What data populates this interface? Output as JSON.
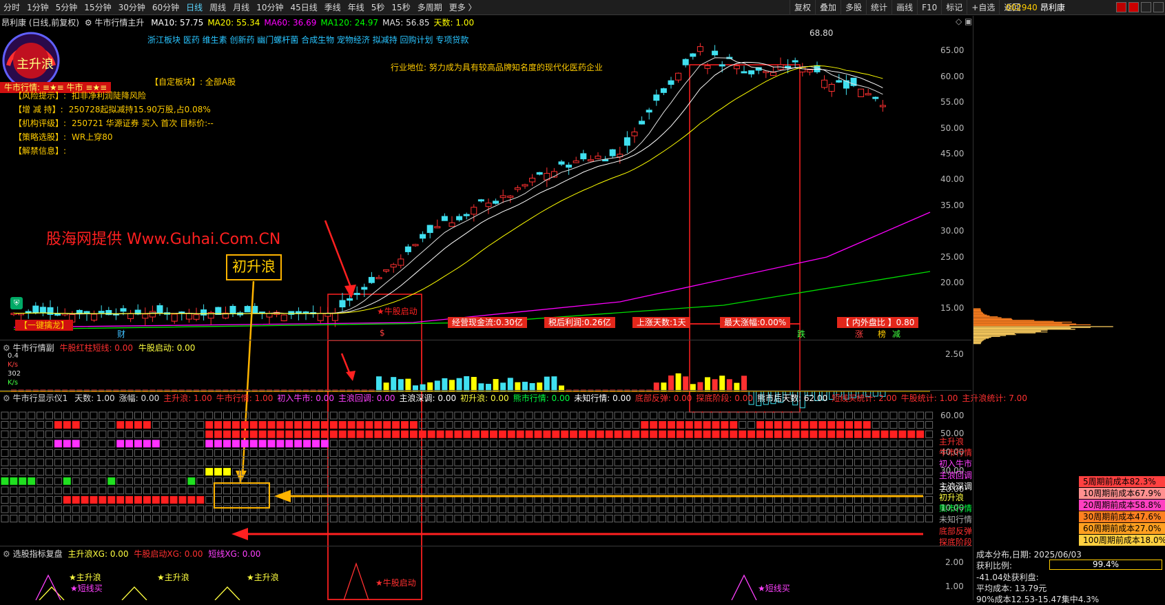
{
  "toolbar": {
    "periods": [
      "分时",
      "1分钟",
      "5分钟",
      "15分钟",
      "30分钟",
      "60分钟",
      "日线",
      "周线",
      "月线",
      "10分钟",
      "45日线",
      "季线",
      "年线",
      "5秒",
      "15秒",
      "多周期",
      "更多 〉"
    ],
    "active_period": "日线",
    "buttons": [
      "复权",
      "叠加",
      "多股",
      "统计",
      "画线",
      "F10",
      "标记",
      "+自选",
      "返回"
    ],
    "stock_code": "002940",
    "stock_name": "昂利康"
  },
  "kline": {
    "title": "昂利康 (日线,前复权)",
    "indicator_name": "牛市行情主升",
    "ma": [
      {
        "label": "MA10: 57.75",
        "color": "#ffffff"
      },
      {
        "label": "MA20: 55.34",
        "color": "#ffff00"
      },
      {
        "label": "MA60: 36.69",
        "color": "#ff00ff"
      },
      {
        "label": "MA120: 24.97",
        "color": "#00ff00"
      },
      {
        "label": "MA5: 56.85",
        "color": "#e0e0e0"
      },
      {
        "label": "天数: 1.00",
        "color": "#ffff00"
      }
    ],
    "concepts": "浙江板块  医药  维生素  创新药  幽门螺杆菌  合成生物  宠物经济   拟减持  回购计划  专项贷款",
    "industry": "行业地位: 努力成为具有较高品牌知名度的现代化医药企业",
    "custom_block": "【自定板块】: 全部A股",
    "bull_market": "牛市行情:  ≡★≡ 牛市 ≡★≡",
    "dial_text": "主升浪",
    "info": [
      {
        "key": "【风险提示】:",
        "val": "扣非净利润陡降风险"
      },
      {
        "key": "【增  减  持】:",
        "val": "250728起拟减持15.90万股,占0.08%"
      },
      {
        "key": "【机构评级】:",
        "val": "250721 华源证券 买入 首次 目标价:--"
      },
      {
        "key": "【策略选股】:",
        "val": "WR上穿80"
      },
      {
        "key": "【解禁信息】:",
        "val": ""
      }
    ],
    "watermark": "股海网提供 Www.Guhai.Com.CN",
    "callout": "初升浪",
    "max_price": "68.80",
    "price_axis": [
      "65.00",
      "60.00",
      "55.00",
      "50.00",
      "45.00",
      "40.00",
      "35.00",
      "30.00",
      "25.00",
      "20.00",
      "15.00"
    ],
    "bottom_tags": [
      "经营现金流:0.30亿",
      "税后利润:0.26亿",
      "上涨天数:1天",
      "最大涨幅:0.00%",
      "【 内外盘比 】0.80"
    ],
    "left_tag": "【一键擒龙】",
    "start_label": "★牛股启动",
    "event_marks": [
      "财",
      "$",
      "跌",
      "涨",
      "榜",
      "减"
    ]
  },
  "sub1": {
    "title": "牛市行情副",
    "f1": "牛股红柱短线: 0.00",
    "f2": "牛股启动: 0.00",
    "axis": [
      "2.50"
    ],
    "ks1": "0.4",
    "ks2": "302",
    "ks_unit": "K/s"
  },
  "sub2": {
    "title": "牛市行显示仪1",
    "fields": [
      {
        "t": "天数: 1.00",
        "c": "#e0e0e0"
      },
      {
        "t": "涨幅: 0.00",
        "c": "#e0e0e0"
      },
      {
        "t": "主升浪: 1.00",
        "c": "#ff3030"
      },
      {
        "t": "牛市行情: 1.00",
        "c": "#ff3030"
      },
      {
        "t": "初入牛市: 0.00",
        "c": "#ff40ff"
      },
      {
        "t": "主浪回调: 0.00",
        "c": "#ff40ff"
      },
      {
        "t": "主浪深调: 0.00",
        "c": "#ffffff"
      },
      {
        "t": "初升浪: 0.00",
        "c": "#ffff40"
      },
      {
        "t": "熊市行情: 0.00",
        "c": "#00ff40"
      },
      {
        "t": "未知行情: 0.00",
        "c": "#ffffff"
      },
      {
        "t": "底部反弹: 0.00",
        "c": "#ff3030"
      },
      {
        "t": "探底阶段: 0.00",
        "c": "#ff3030"
      },
      {
        "t": "熊市后天数: 62.00",
        "c": "#ffffff"
      },
      {
        "t": "短线买统计: 2.00",
        "c": "#ff3030"
      },
      {
        "t": "牛股统计: 1.00",
        "c": "#ff3030"
      },
      {
        "t": "主升浪统计: 7.00",
        "c": "#ff3030"
      }
    ],
    "axis": [
      "60.00",
      "50.00",
      "40.00",
      "30.00",
      "20.00",
      "10.00"
    ],
    "legend": [
      {
        "t": "主升浪",
        "c": "#ff3030"
      },
      {
        "t": "牛市行情",
        "c": "#ff3030"
      },
      {
        "t": "初入牛市",
        "c": "#ff40ff"
      },
      {
        "t": "主浪回调",
        "c": "#ff40ff"
      },
      {
        "t": "主浪深调",
        "c": "#ffffff"
      },
      {
        "t": "初升浪",
        "c": "#ffff40"
      },
      {
        "t": "熊市行情",
        "c": "#00ff40"
      },
      {
        "t": "未知行情",
        "c": "#aaaaaa"
      },
      {
        "t": "底部反弹",
        "c": "#ff3030"
      },
      {
        "t": "探底阶段",
        "c": "#ff3030"
      }
    ]
  },
  "sub3": {
    "title": "选股指标复盘",
    "f1": "主升浪XG: 0.00",
    "f2": "牛股启动XG: 0.00",
    "f3": "短线XG: 0.00",
    "axis": [
      "2.00",
      "1.00"
    ],
    "label_main": "★主升浪",
    "label_short": "★短线买",
    "label_start": "★牛股启动"
  },
  "side": {
    "cost_rows": [
      {
        "t": "5周期前成本82.3%",
        "c": "#ff4040"
      },
      {
        "t": "10周期前成本67.9%",
        "c": "#ff9090"
      },
      {
        "t": "20周期前成本58.8%",
        "c": "#ff40c0"
      },
      {
        "t": "30周期前成本47.6%",
        "c": "#ff8020"
      },
      {
        "t": "60周期前成本27.0%",
        "c": "#ffa020"
      },
      {
        "t": "100周期前成本18.0%",
        "c": "#ffd040"
      }
    ],
    "dist_date": "成本分布,日期:  2025/06/03",
    "profit_label": "获利比例:",
    "profit_value": "99.4%",
    "profit_line": "-41.04处获利盘:",
    "avg_cost": "平均成本:  13.79元",
    "range90": "90%成本12.53-15.47集中4.3%"
  }
}
